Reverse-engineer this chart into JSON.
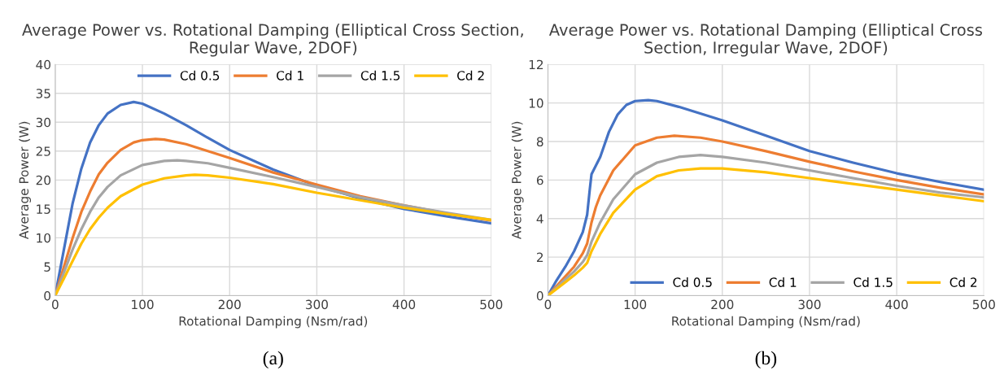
{
  "chart_data": [
    {
      "type": "line",
      "title": "Average Power vs. Rotational Damping (Elliptical Cross Section, Regular Wave, 2DOF)",
      "xlabel": "Rotational Damping (Nsm/rad)",
      "ylabel": "Average Power (W)",
      "xlim": [
        0,
        500
      ],
      "xticks": [
        0,
        100,
        200,
        300,
        400,
        500
      ],
      "ylim": [
        0,
        40
      ],
      "yticks": [
        0,
        5,
        10,
        15,
        20,
        25,
        30,
        35,
        40
      ],
      "grid": true,
      "legend": "top right",
      "marker": "none",
      "line_style": "solid",
      "annotations": [
        "(a)"
      ],
      "series": [
        {
          "name": "Cd 0.5",
          "color": "#4472c4",
          "x": [
            0,
            10,
            20,
            30,
            40,
            50,
            60,
            75,
            90,
            100,
            125,
            150,
            175,
            200,
            250,
            300,
            350,
            400,
            450,
            500
          ],
          "values": [
            0,
            8,
            16,
            22,
            26.5,
            29.5,
            31.5,
            33,
            33.5,
            33.2,
            31.5,
            29.5,
            27.3,
            25.2,
            21.8,
            19,
            16.8,
            15,
            13.7,
            12.5
          ]
        },
        {
          "name": "Cd 1",
          "color": "#ed7d31",
          "x": [
            0,
            10,
            20,
            30,
            40,
            50,
            60,
            75,
            90,
            100,
            115,
            125,
            150,
            175,
            200,
            250,
            300,
            350,
            400,
            450,
            500
          ],
          "values": [
            0,
            5,
            10,
            14.5,
            18,
            21,
            23,
            25.2,
            26.5,
            26.9,
            27.1,
            27,
            26.2,
            25,
            23.8,
            21.3,
            19.2,
            17.2,
            15.6,
            14.2,
            13
          ]
        },
        {
          "name": "Cd 1.5",
          "color": "#a5a5a5",
          "x": [
            0,
            10,
            20,
            30,
            40,
            50,
            60,
            75,
            100,
            125,
            140,
            150,
            175,
            200,
            250,
            300,
            350,
            400,
            450,
            500
          ],
          "values": [
            0,
            4,
            8,
            11.5,
            14.5,
            17,
            18.8,
            20.8,
            22.6,
            23.3,
            23.4,
            23.3,
            22.9,
            22.1,
            20.5,
            18.8,
            17,
            15.6,
            14.3,
            13.1
          ]
        },
        {
          "name": "Cd 2",
          "color": "#ffc000",
          "x": [
            0,
            10,
            20,
            30,
            40,
            50,
            60,
            75,
            100,
            125,
            150,
            160,
            175,
            200,
            250,
            300,
            350,
            400,
            450,
            500
          ],
          "values": [
            0,
            3,
            6,
            9,
            11.5,
            13.5,
            15.2,
            17.2,
            19.2,
            20.3,
            20.8,
            20.9,
            20.8,
            20.4,
            19.3,
            17.8,
            16.5,
            15.2,
            14.1,
            13.1
          ]
        }
      ]
    },
    {
      "type": "line",
      "title": "Average Power vs. Rotational Damping (Elliptical Cross Section, Irregular Wave, 2DOF)",
      "xlabel": "Rotational Damping (Nsm/rad)",
      "ylabel": "Average Power (W)",
      "xlim": [
        0,
        500
      ],
      "xticks": [
        0,
        100,
        200,
        300,
        400,
        500
      ],
      "ylim": [
        0,
        12
      ],
      "yticks": [
        0,
        2,
        4,
        6,
        8,
        10,
        12
      ],
      "grid": true,
      "legend": "bottom right",
      "marker": "none",
      "line_style": "solid",
      "annotations": [
        "(b)"
      ],
      "series": [
        {
          "name": "Cd 0.5",
          "color": "#4472c4",
          "x": [
            0,
            10,
            20,
            30,
            40,
            45,
            48,
            50,
            60,
            70,
            80,
            90,
            100,
            115,
            125,
            150,
            200,
            250,
            300,
            350,
            400,
            450,
            500
          ],
          "values": [
            0,
            0.8,
            1.5,
            2.3,
            3.3,
            4.2,
            5.5,
            6.3,
            7.2,
            8.5,
            9.4,
            9.9,
            10.1,
            10.15,
            10.1,
            9.8,
            9.1,
            8.3,
            7.5,
            6.9,
            6.35,
            5.9,
            5.5
          ]
        },
        {
          "name": "Cd 1",
          "color": "#ed7d31",
          "x": [
            0,
            20,
            30,
            40,
            45,
            50,
            55,
            60,
            75,
            100,
            125,
            145,
            175,
            200,
            250,
            300,
            350,
            400,
            450,
            500
          ],
          "values": [
            0,
            1,
            1.5,
            2.2,
            2.7,
            3.8,
            4.6,
            5.2,
            6.5,
            7.8,
            8.2,
            8.3,
            8.2,
            8,
            7.5,
            6.95,
            6.45,
            6,
            5.6,
            5.25
          ]
        },
        {
          "name": "Cd 1.5",
          "color": "#a5a5a5",
          "x": [
            0,
            20,
            30,
            40,
            45,
            50,
            60,
            75,
            100,
            125,
            150,
            175,
            200,
            250,
            300,
            350,
            400,
            450,
            500
          ],
          "values": [
            0,
            0.85,
            1.25,
            1.75,
            2.1,
            2.8,
            3.8,
            5,
            6.3,
            6.9,
            7.2,
            7.3,
            7.2,
            6.9,
            6.5,
            6.1,
            5.7,
            5.35,
            5.1
          ]
        },
        {
          "name": "Cd 2",
          "color": "#ffc000",
          "x": [
            0,
            20,
            30,
            40,
            45,
            50,
            60,
            75,
            100,
            125,
            150,
            175,
            200,
            250,
            300,
            350,
            400,
            450,
            500
          ],
          "values": [
            0,
            0.7,
            1.05,
            1.45,
            1.7,
            2.3,
            3.2,
            4.3,
            5.5,
            6.2,
            6.5,
            6.6,
            6.6,
            6.4,
            6.1,
            5.8,
            5.5,
            5.2,
            4.9
          ]
        }
      ]
    }
  ]
}
